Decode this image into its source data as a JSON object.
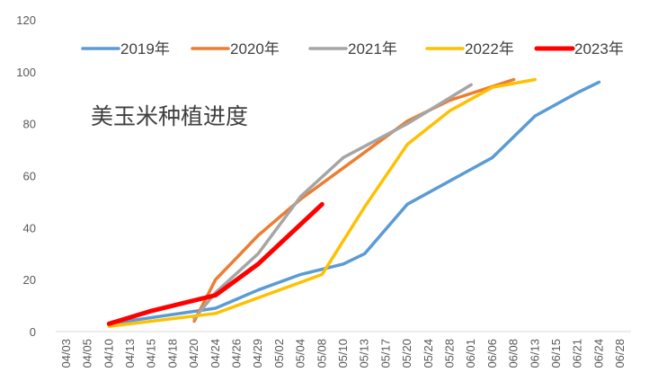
{
  "chart_data": {
    "type": "line",
    "title": "美玉米种植进度",
    "xlabel": "",
    "ylabel": "",
    "ylim": [
      0,
      120
    ],
    "yticks": [
      0,
      20,
      40,
      60,
      80,
      100,
      120
    ],
    "grid": false,
    "legend_position": "top",
    "categories": [
      "04/03",
      "04/05",
      "04/10",
      "04/13",
      "04/15",
      "04/18",
      "04/20",
      "04/24",
      "04/26",
      "04/29",
      "05/02",
      "05/04",
      "05/08",
      "05/10",
      "05/13",
      "05/17",
      "05/20",
      "05/24",
      "05/28",
      "06/01",
      "06/06",
      "06/08",
      "06/13",
      "06/15",
      "06/21",
      "06/24",
      "06/28"
    ],
    "series": [
      {
        "name": "2019年",
        "color": "#5B9BD5",
        "width": 3.5,
        "values": [
          null,
          null,
          3,
          null,
          null,
          null,
          null,
          9,
          null,
          16,
          null,
          22,
          null,
          26,
          30,
          null,
          49,
          null,
          58,
          null,
          67,
          null,
          83,
          null,
          92,
          96,
          null
        ]
      },
      {
        "name": "2020年",
        "color": "#ED7D31",
        "width": 3.5,
        "values": [
          null,
          null,
          null,
          null,
          null,
          null,
          4,
          20,
          null,
          37,
          null,
          51,
          null,
          63,
          null,
          null,
          81,
          null,
          89,
          null,
          null,
          97,
          null,
          null,
          null,
          null,
          null
        ]
      },
      {
        "name": "2021年",
        "color": "#A5A5A5",
        "width": 3.5,
        "values": [
          null,
          null,
          null,
          null,
          null,
          null,
          5,
          15,
          null,
          30,
          null,
          52,
          null,
          67,
          null,
          null,
          80,
          null,
          90,
          95,
          null,
          null,
          null,
          null,
          null,
          null,
          null
        ]
      },
      {
        "name": "2022年",
        "color": "#FFC000",
        "width": 3.5,
        "values": [
          null,
          null,
          2,
          null,
          null,
          null,
          null,
          7,
          null,
          13,
          null,
          19,
          22,
          null,
          48,
          null,
          72,
          null,
          85,
          null,
          94,
          null,
          97,
          null,
          null,
          null,
          null
        ]
      },
      {
        "name": "2023年",
        "color": "#FF0000",
        "width": 5,
        "values": [
          null,
          null,
          3,
          null,
          8,
          null,
          null,
          14,
          null,
          26,
          null,
          null,
          49,
          null,
          null,
          null,
          null,
          null,
          null,
          null,
          null,
          null,
          null,
          null,
          null,
          null,
          null
        ]
      }
    ]
  }
}
